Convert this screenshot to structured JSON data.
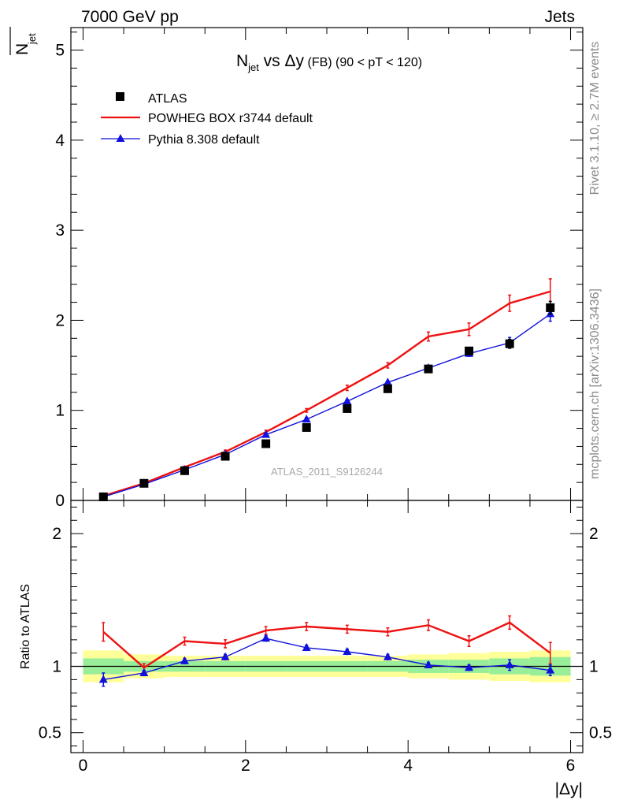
{
  "header": {
    "left": "7000 GeV pp",
    "right": "Jets"
  },
  "side_labels": {
    "rivet": "Rivet 3.1.10, ≥ 2.7M events",
    "site": "mcplots.cern.ch [arXiv:1306.3436]"
  },
  "chart_data": {
    "type": "line",
    "title": {
      "main": "N",
      "sub": "jet",
      "rest": " vs Δy",
      "small": " (FB) (90 < pT < 120)"
    },
    "watermark": "ATLAS_2011_S9126244",
    "xlabel": "|Δy|",
    "ylabel": {
      "main": "N",
      "sub": "jet"
    },
    "xlim": [
      -0.15,
      6.15
    ],
    "ylim": [
      0,
      5.25
    ],
    "xticks": [
      "0",
      "2",
      "4",
      "6"
    ],
    "yticks": [
      "0",
      "1",
      "2",
      "3",
      "4",
      "5"
    ],
    "x": [
      0.25,
      0.75,
      1.25,
      1.75,
      2.25,
      2.75,
      3.25,
      3.75,
      4.25,
      4.75,
      5.25,
      5.75
    ],
    "legend": [
      "ATLAS",
      "POWHEG BOX r3744 default",
      "Pythia 8.308 default"
    ],
    "series": [
      {
        "name": "ATLAS",
        "color": "#000000",
        "marker": "square",
        "values": [
          0.04,
          0.19,
          0.33,
          0.49,
          0.63,
          0.81,
          1.02,
          1.24,
          1.46,
          1.66,
          1.74,
          2.14
        ],
        "errors": [
          0.01,
          0.01,
          0.01,
          0.02,
          0.02,
          0.02,
          0.02,
          0.03,
          0.03,
          0.04,
          0.05,
          0.07
        ]
      },
      {
        "name": "POWHEG BOX r3744 default",
        "color": "#ee1111",
        "marker": "none",
        "values": [
          0.05,
          0.19,
          0.37,
          0.54,
          0.76,
          1.0,
          1.25,
          1.5,
          1.82,
          1.9,
          2.19,
          2.32
        ],
        "errors": [
          0.01,
          0.01,
          0.01,
          0.02,
          0.02,
          0.02,
          0.03,
          0.03,
          0.05,
          0.07,
          0.09,
          0.14
        ]
      },
      {
        "name": "Pythia 8.308 default",
        "color": "#1111dd",
        "marker": "triangle",
        "values": [
          0.04,
          0.18,
          0.34,
          0.51,
          0.73,
          0.9,
          1.1,
          1.31,
          1.47,
          1.63,
          1.75,
          2.07
        ],
        "errors": [
          0.01,
          0.01,
          0.01,
          0.01,
          0.02,
          0.02,
          0.02,
          0.02,
          0.03,
          0.03,
          0.06,
          0.08
        ]
      }
    ],
    "ratio": {
      "ylabel": "Ratio to ATLAS",
      "ylim": [
        0.35,
        2.25
      ],
      "yticks": [
        "0.5",
        "1",
        "2"
      ],
      "ytick_values": [
        0.5,
        1,
        2
      ],
      "band_green": [
        0.06,
        0.04,
        0.04,
        0.04,
        0.04,
        0.04,
        0.04,
        0.04,
        0.05,
        0.05,
        0.06,
        0.07
      ],
      "band_yellow": [
        0.12,
        0.09,
        0.08,
        0.08,
        0.08,
        0.08,
        0.08,
        0.08,
        0.09,
        0.1,
        0.11,
        0.12
      ],
      "series": [
        {
          "name": "POWHEG BOX r3744 default",
          "color": "#ee1111",
          "marker": "none",
          "values": [
            1.26,
            0.99,
            1.19,
            1.17,
            1.27,
            1.3,
            1.28,
            1.26,
            1.31,
            1.19,
            1.33,
            1.1
          ],
          "errors": [
            0.07,
            0.03,
            0.03,
            0.03,
            0.03,
            0.03,
            0.03,
            0.03,
            0.04,
            0.04,
            0.05,
            0.08
          ]
        },
        {
          "name": "Pythia 8.308 default",
          "color": "#1111dd",
          "marker": "triangle",
          "values": [
            0.9,
            0.95,
            1.04,
            1.07,
            1.21,
            1.14,
            1.11,
            1.07,
            1.01,
            0.99,
            1.01,
            0.97
          ],
          "errors": [
            0.05,
            0.02,
            0.02,
            0.02,
            0.02,
            0.02,
            0.02,
            0.02,
            0.02,
            0.02,
            0.04,
            0.04
          ]
        }
      ]
    }
  }
}
